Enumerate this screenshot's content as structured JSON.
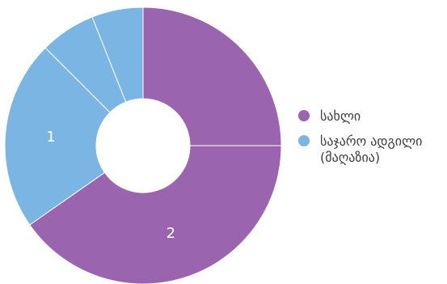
{
  "chart_data": {
    "type": "pie",
    "variant": "doughnut",
    "title": "",
    "legend": [
      {
        "label": "სახლი",
        "color": "#9b64ae"
      },
      {
        "label": "საჯარო ადგილი (მაღაზია)",
        "color": "#7ab5e3"
      }
    ],
    "slices": [
      {
        "legend_index": 0,
        "value": 25.0,
        "label": ""
      },
      {
        "legend_index": 0,
        "value": 40.3,
        "label": "2"
      },
      {
        "legend_index": 1,
        "value": 22.2,
        "label": "1"
      },
      {
        "legend_index": 1,
        "value": 6.5,
        "label": ""
      },
      {
        "legend_index": 1,
        "value": 6.0,
        "label": ""
      }
    ],
    "legend_position": "right",
    "slice_border_color": "#ffffff"
  }
}
